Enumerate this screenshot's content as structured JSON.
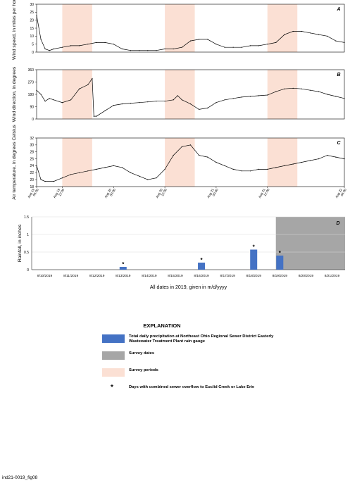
{
  "chart_data": [
    {
      "panel_label": "A",
      "type": "line",
      "ylabel": "Wind speed, in miles per hour",
      "ylim": [
        0,
        30
      ],
      "yticks": [
        0,
        5,
        10,
        15,
        20,
        25,
        30
      ],
      "xlim": [
        "Aug 19 06:00",
        "Aug 22 06:00"
      ],
      "series_color": "#000000",
      "x_hours": [
        0,
        1,
        2,
        3,
        4,
        6,
        8,
        10,
        12,
        14,
        16,
        18,
        20,
        22,
        24,
        26,
        28,
        30,
        32,
        34,
        36,
        38,
        40,
        42,
        44,
        46,
        48,
        50,
        52,
        54,
        56,
        58,
        60,
        62,
        64,
        66,
        68,
        70,
        72
      ],
      "values": [
        23,
        8,
        2,
        1,
        2,
        3,
        4,
        4,
        5,
        6,
        6,
        5,
        2,
        1,
        1,
        1,
        1,
        2,
        2,
        3,
        7,
        8,
        8,
        5,
        3,
        3,
        3,
        4,
        4,
        5,
        6,
        11,
        13,
        13,
        12,
        11,
        10,
        7,
        6
      ]
    },
    {
      "panel_label": "B",
      "type": "line",
      "ylabel": "Wind direction, in degrees",
      "ylim": [
        0,
        360
      ],
      "yticks": [
        0,
        90,
        180,
        270,
        360
      ],
      "xlim": [
        "Aug 19 06:00",
        "Aug 22 06:00"
      ],
      "series_color": "#000000",
      "x_hours": [
        0,
        1,
        2,
        3,
        4,
        6,
        8,
        10,
        12,
        13,
        13.4,
        14,
        16,
        18,
        20,
        22,
        24,
        26,
        28,
        30,
        32,
        33,
        34,
        36,
        38,
        40,
        42,
        44,
        46,
        48,
        50,
        52,
        54,
        56,
        58,
        60,
        62,
        64,
        66,
        68,
        70,
        72
      ],
      "values": [
        210,
        180,
        130,
        150,
        140,
        120,
        140,
        220,
        250,
        295,
        20,
        20,
        60,
        100,
        110,
        115,
        120,
        125,
        130,
        130,
        140,
        170,
        140,
        110,
        70,
        80,
        120,
        140,
        150,
        160,
        165,
        170,
        175,
        200,
        220,
        225,
        220,
        210,
        200,
        180,
        165,
        150
      ]
    },
    {
      "panel_label": "C",
      "type": "line",
      "ylabel": "Air temperature, in degrees Celsius",
      "ylim": [
        18,
        32
      ],
      "yticks": [
        18,
        20,
        22,
        24,
        26,
        28,
        30,
        32
      ],
      "xlim": [
        "Aug 19 06:00",
        "Aug 22 06:00"
      ],
      "series_color": "#000000",
      "x_hours": [
        0,
        1,
        2,
        4,
        6,
        8,
        10,
        12,
        14,
        16,
        18,
        20,
        22,
        24,
        26,
        28,
        30,
        32,
        34,
        36,
        38,
        40,
        42,
        44,
        46,
        48,
        50,
        52,
        54,
        56,
        58,
        60,
        62,
        64,
        66,
        68,
        70,
        72
      ],
      "values": [
        24,
        20,
        19.5,
        19.5,
        20.5,
        21.5,
        22,
        22.5,
        23,
        23.5,
        24,
        23.5,
        22,
        21,
        20,
        20.5,
        23,
        27,
        29.5,
        30,
        27,
        26.5,
        25,
        24,
        23,
        22.5,
        22.5,
        23,
        23,
        23.5,
        24,
        24.5,
        25,
        25.5,
        26,
        27,
        26.5,
        26
      ],
      "xtick_labels": [
        "Aug 19\n06:00",
        "Aug 19\n12:00",
        "Aug 20\n00:00",
        "Aug 20\n12:00",
        "Aug 21\n00:00",
        "Aug 21\n12:00",
        "Aug 22\n06:00"
      ]
    },
    {
      "panel_label": "D",
      "type": "bar",
      "ylabel": "Rainfall, in inches",
      "xlabel": "All dates in 2019, given in m/d/yyyy",
      "ylim": [
        0,
        1.5
      ],
      "yticks": [
        "0",
        "0.5",
        "1",
        "1.5"
      ],
      "categories": [
        "8/10/2019",
        "8/11/2019",
        "8/12/2019",
        "8/13/2019",
        "8/14/2019",
        "8/15/2019",
        "8/16/2019",
        "8/17/2019",
        "8/18/2019",
        "8/19/2019",
        "8/20/2019",
        "8/21/2019"
      ],
      "values": [
        0,
        0,
        0,
        0.08,
        0,
        0,
        0.2,
        0,
        0.57,
        0.4,
        0,
        0
      ],
      "overflow_days": [
        "8/13/2019",
        "8/16/2019",
        "8/18/2019",
        "8/19/2019"
      ],
      "survey_dates_range": [
        "8/19/2019",
        "8/21/2019"
      ],
      "bar_color": "#4472c4",
      "survey_color": "#a6a6a6"
    }
  ],
  "survey_period_color": "#fbe0d4",
  "survey_periods_hours": [
    [
      6,
      13
    ],
    [
      30,
      37
    ],
    [
      54,
      61
    ]
  ],
  "legend": {
    "title": "EXPLANATION",
    "precip_label": "Total daily precipitation at Northeast Ohio Regional Sewer District Easterly Wastewater Treatment Plant rain gauge",
    "survey_dates_label": "Survey dates",
    "survey_periods_label": "Survey periods",
    "overflow_label": "Days with combined sewer overflow to Euclid Creek or Lake Erie",
    "overflow_symbol": "*"
  },
  "figure_id": "ind21-0019_fig08"
}
